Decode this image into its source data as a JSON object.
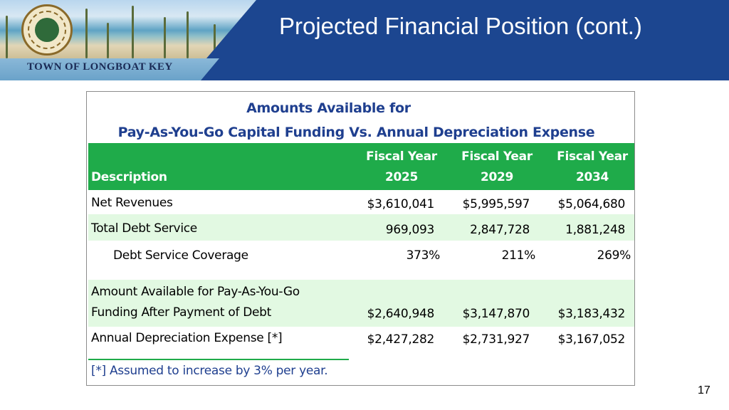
{
  "header": {
    "title": "Projected Financial Position (cont.)",
    "town_name": "TOWN OF LONGBOAT KEY",
    "brand_color": "#1c4690"
  },
  "table": {
    "title_line1": "Amounts Available for",
    "title_line2": "Pay-As-You-Go Capital Funding Vs. Annual Depreciation Expense",
    "header_color": "#1fab4a",
    "columns": [
      {
        "line1": "",
        "line2": "Description"
      },
      {
        "line1": "Fiscal Year",
        "line2": "2025"
      },
      {
        "line1": "Fiscal Year",
        "line2": "2029"
      },
      {
        "line1": "Fiscal Year",
        "line2": "2034"
      }
    ],
    "rows": [
      {
        "description": "Net Revenues",
        "values": [
          "$3,610,041",
          "$5,995,597",
          "$5,064,680"
        ]
      },
      {
        "description": "Total Debt Service",
        "values": [
          "969,093",
          "2,847,728",
          "1,881,248"
        ]
      },
      {
        "description": "Debt Service Coverage",
        "values": [
          "373%",
          "211%",
          "269%"
        ]
      },
      {
        "description_line1": "Amount Available for Pay-As-You-Go",
        "description_line2": "Funding After Payment of Debt",
        "values": [
          "$2,640,948",
          "$3,147,870",
          "$3,183,432"
        ]
      },
      {
        "description": "Annual Depreciation Expense [*]",
        "values": [
          "$2,427,282",
          "$2,731,927",
          "$3,167,052"
        ]
      }
    ],
    "footnote": "[*] Assumed to increase by 3% per year."
  },
  "page_number": "17"
}
